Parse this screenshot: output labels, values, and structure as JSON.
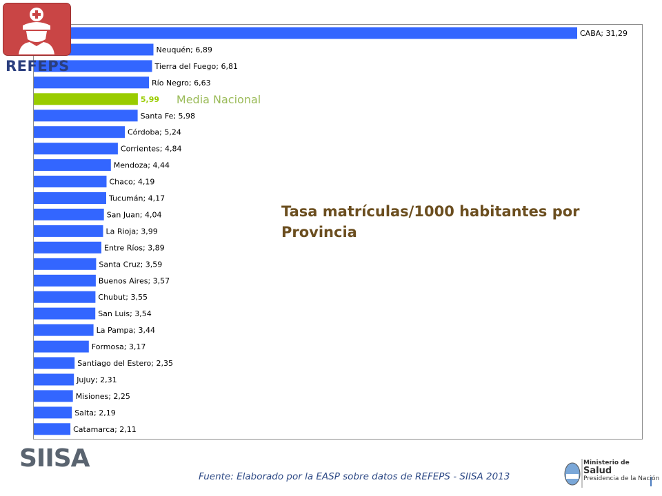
{
  "header": {
    "logo_text": "REFEPS"
  },
  "footer": {
    "source": "Fuente: Elaborado por la EASP sobre datos de REFEPS - SIISA 2013",
    "siisa_logo_text": "SIISA",
    "ministerio": {
      "line1": "Ministerio de",
      "line2": "Salud",
      "line3": "Presidencia de la Nación"
    }
  },
  "colors": {
    "bar": "#3366ff",
    "highlight": "#99cc00",
    "title": "#6b4e1f",
    "annotation": "#9bbb59",
    "source": "#2e4a86"
  },
  "chart_data": {
    "type": "bar",
    "orientation": "horizontal",
    "title": "Tasa matrículas/1000 habitantes por Provincia",
    "xlim": [
      0,
      32
    ],
    "grid": false,
    "categories": [
      "CABA",
      "Neuquén",
      "Tierra del Fuego",
      "Río Negro",
      "",
      "Santa Fe",
      "Córdoba",
      "Corrientes",
      "Mendoza",
      "Chaco",
      "Tucumán",
      "San Juan",
      "La Rioja",
      "Entre Ríos",
      "Santa Cruz",
      "Buenos Aires",
      "Chubut",
      "San Luis",
      "La Pampa",
      "Formosa",
      "Santiago del Estero",
      "Jujuy",
      "Misiones",
      "Salta",
      "Catamarca"
    ],
    "values": [
      31.29,
      6.89,
      6.81,
      6.63,
      5.99,
      5.98,
      5.24,
      4.84,
      4.44,
      4.19,
      4.17,
      4.04,
      3.99,
      3.89,
      3.59,
      3.57,
      3.55,
      3.54,
      3.44,
      3.17,
      2.35,
      2.31,
      2.25,
      2.19,
      2.11
    ],
    "data_labels": [
      "CABA; 31,29",
      "Neuquén; 6,89",
      "Tierra del Fuego; 6,81",
      "Río Negro; 6,63",
      "5,99",
      "Santa Fe; 5,98",
      "Córdoba; 5,24",
      "Corrientes; 4,84",
      "Mendoza; 4,44",
      "Chaco; 4,19",
      "Tucumán; 4,17",
      "San Juan; 4,04",
      "La Rioja; 3,99",
      "Entre Ríos; 3,89",
      "Santa Cruz; 3,59",
      "Buenos Aires; 3,57",
      "Chubut; 3,55",
      "San Luis; 3,54",
      "La Pampa; 3,44",
      "Formosa; 3,17",
      "Santiago del Estero; 2,35",
      "Jujuy; 2,31",
      "Misiones; 2,25",
      "Salta; 2,19",
      "Catamarca; 2,11"
    ],
    "highlight_index": 4,
    "annotation": "Media Nacional"
  }
}
